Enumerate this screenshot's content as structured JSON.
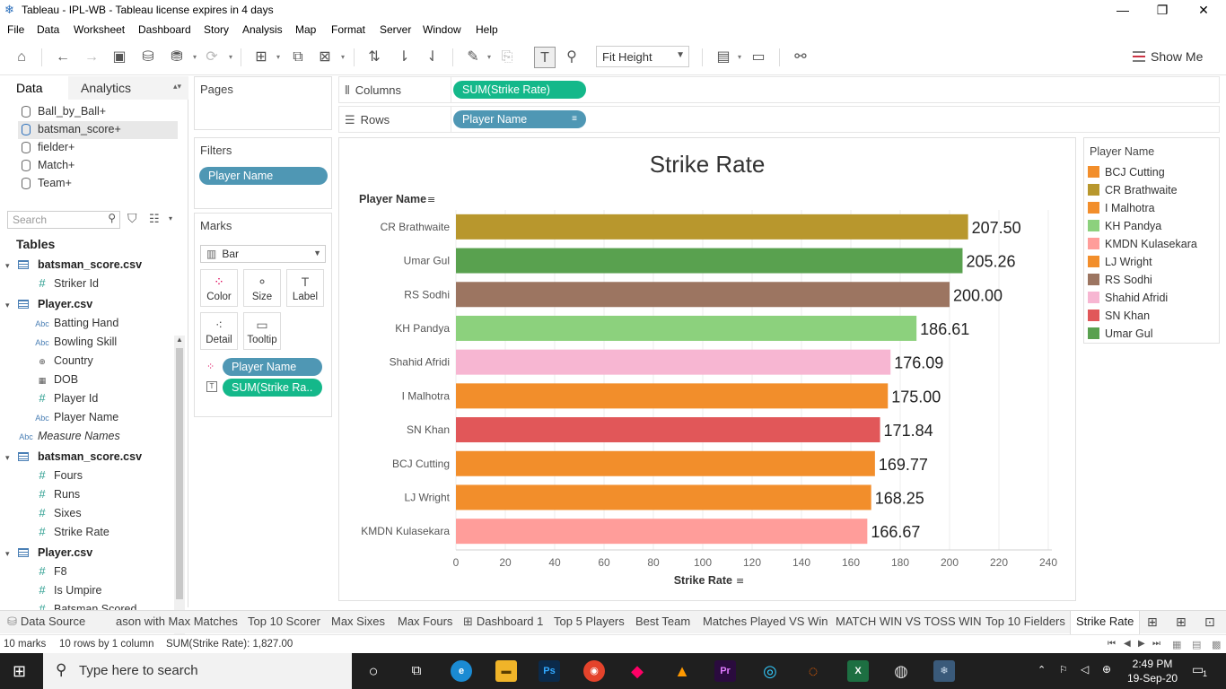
{
  "window": {
    "title": "Tableau - IPL-WB - Tableau license expires in 4 days",
    "minimize": "—",
    "restore": "❐",
    "close": "✕"
  },
  "menu": [
    "File",
    "Data",
    "Worksheet",
    "Dashboard",
    "Story",
    "Analysis",
    "Map",
    "Format",
    "Server",
    "Window",
    "Help"
  ],
  "toolbar": {
    "fit": "Fit Height",
    "show_me": "Show Me"
  },
  "left_pane": {
    "tab_data": "Data",
    "tab_analytics": "Analytics",
    "datasources": [
      "Ball_by_Ball+",
      "batsman_score+",
      "fielder+",
      "Match+",
      "Team+"
    ],
    "active_datasource": "batsman_score+",
    "search_placeholder": "Search",
    "tables_label": "Tables",
    "fields": [
      {
        "kind": "table",
        "label": "batsman_score.csv"
      },
      {
        "kind": "measure",
        "type": "#",
        "label": "Striker Id"
      },
      {
        "kind": "table",
        "label": "Player.csv"
      },
      {
        "kind": "dim",
        "type": "Abc",
        "label": "Batting Hand"
      },
      {
        "kind": "dim",
        "type": "Abc",
        "label": "Bowling Skill"
      },
      {
        "kind": "geo",
        "type": "⊕",
        "label": "Country"
      },
      {
        "kind": "measure",
        "type": "▦",
        "label": "DOB"
      },
      {
        "kind": "measure",
        "type": "#",
        "label": "Player Id"
      },
      {
        "kind": "dim",
        "type": "Abc",
        "label": "Player Name"
      },
      {
        "kind": "dim-top",
        "type": "Abc",
        "label": "Measure Names"
      },
      {
        "kind": "table",
        "label": "batsman_score.csv"
      },
      {
        "kind": "measure",
        "type": "#",
        "label": "Fours"
      },
      {
        "kind": "measure",
        "type": "#",
        "label": "Runs"
      },
      {
        "kind": "measure",
        "type": "#",
        "label": "Sixes"
      },
      {
        "kind": "measure",
        "type": "#",
        "label": "Strike Rate"
      },
      {
        "kind": "table",
        "label": "Player.csv"
      },
      {
        "kind": "measure",
        "type": "#",
        "label": "F8"
      },
      {
        "kind": "measure",
        "type": "#",
        "label": "Is Umpire"
      },
      {
        "kind": "measure-cut",
        "type": "#",
        "label": "Batsman Scored"
      }
    ]
  },
  "cards": {
    "pages": "Pages",
    "filters": "Filters",
    "filter_pill": "Player Name",
    "marks": "Marks",
    "mark_type": "Bar",
    "mark_buttons": [
      "Color",
      "Size",
      "Label",
      "Detail",
      "Tooltip"
    ],
    "mark_pills": [
      "Player Name",
      "SUM(Strike Ra.."
    ]
  },
  "shelves": {
    "columns_label": "Columns",
    "columns_pill": "SUM(Strike Rate)",
    "rows_label": "Rows",
    "rows_pill": "Player Name"
  },
  "chart_data": {
    "type": "bar",
    "orientation": "horizontal",
    "title": "Strike Rate",
    "xlabel": "Strike Rate",
    "ylabel": "Player Name",
    "xlim": [
      0,
      240
    ],
    "xticks": [
      0,
      20,
      40,
      60,
      80,
      100,
      120,
      140,
      160,
      180,
      200,
      220,
      240
    ],
    "grid": true,
    "categories": [
      "CR Brathwaite",
      "Umar Gul",
      "RS Sodhi",
      "KH Pandya",
      "Shahid Afridi",
      "I Malhotra",
      "SN Khan",
      "BCJ Cutting",
      "LJ Wright",
      "KMDN Kulasekara"
    ],
    "values": [
      207.5,
      205.26,
      200.0,
      186.61,
      176.09,
      175.0,
      171.84,
      169.77,
      168.25,
      166.67
    ],
    "labels": [
      "207.50",
      "205.26",
      "200.00",
      "186.61",
      "176.09",
      "175.00",
      "171.84",
      "169.77",
      "168.25",
      "166.67"
    ],
    "colors": [
      "#b8972d",
      "#59a14f",
      "#9c7561",
      "#8cd17d",
      "#f7b6d2",
      "#f28e2b",
      "#e15759",
      "#f28e2b",
      "#f28e2b",
      "#ff9d9a"
    ]
  },
  "legend": {
    "title": "Player Name",
    "items": [
      {
        "name": "BCJ Cutting",
        "color": "#f28e2b"
      },
      {
        "name": "CR Brathwaite",
        "color": "#b8972d"
      },
      {
        "name": "I Malhotra",
        "color": "#f28e2b"
      },
      {
        "name": "KH Pandya",
        "color": "#8cd17d"
      },
      {
        "name": "KMDN Kulasekara",
        "color": "#ff9d9a"
      },
      {
        "name": "LJ Wright",
        "color": "#f28e2b"
      },
      {
        "name": "RS Sodhi",
        "color": "#9c7561"
      },
      {
        "name": "Shahid Afridi",
        "color": "#f7b6d2"
      },
      {
        "name": "SN Khan",
        "color": "#e15759"
      },
      {
        "name": "Umar Gul",
        "color": "#59a14f"
      }
    ]
  },
  "sheet_tabs": [
    "Data Source",
    "ason with Max Matches",
    "Top 10 Scorer",
    "Max  Sixes",
    "Max Fours",
    "Dashboard 1",
    "Top 5 Players",
    "Best Team",
    "Matches Played VS Win",
    "MATCH WIN VS TOSS WIN",
    "Top 10 Fielders",
    "Strike Rate"
  ],
  "active_sheet": "Strike Rate",
  "status": {
    "marks": "10 marks",
    "rows": "10 rows by 1 column",
    "sum": "SUM(Strike Rate): 1,827.00"
  },
  "taskbar": {
    "search": "Type here to search",
    "time": "2:49 PM",
    "date": "19-Sep-20",
    "notifications": "1"
  }
}
